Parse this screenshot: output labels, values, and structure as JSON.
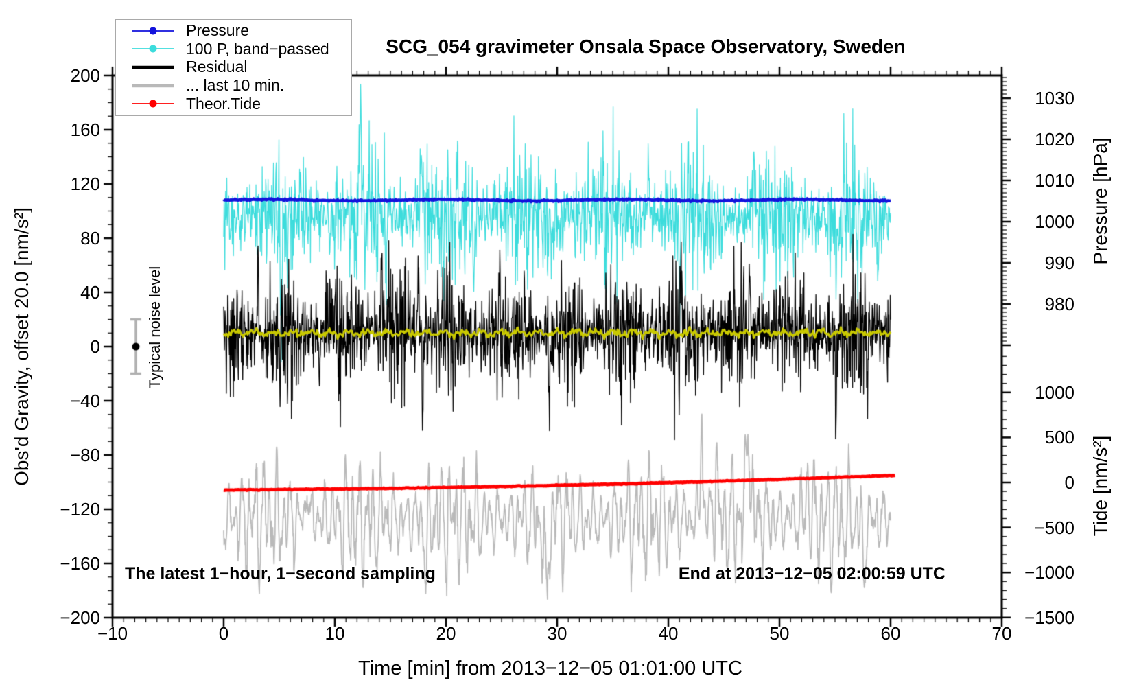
{
  "chart_data": {
    "type": "line",
    "title": "SCG_054 gravimeter Onsala Space Observatory, Sweden",
    "xlabel": "Time [min] from 2013−12−05 01:01:00 UTC",
    "ylabel_left": "Obs'd Gravity, offset 20.0 [nm/s²]",
    "ylabel_right_top": "Pressure [hPa]",
    "ylabel_right_bottom": "Tide [nm/s²]",
    "annotations": {
      "sampling": "The latest 1−hour, 1−second sampling",
      "end_time": "End at 2013−12−05 02:00:59 UTC"
    },
    "axes": {
      "x": {
        "min": -10,
        "max": 70,
        "major_tick": 10,
        "minor_tick": 1,
        "tick_values": [
          -10,
          0,
          10,
          20,
          30,
          40,
          50,
          60,
          70
        ],
        "tick_labels": [
          "−10",
          "0",
          "10",
          "20",
          "30",
          "40",
          "50",
          "60",
          "70"
        ]
      },
      "gravity": {
        "min": -200,
        "max": 200,
        "major_tick": 40,
        "minor_tick": 10,
        "tick_values": [
          200,
          160,
          120,
          80,
          40,
          0,
          -40,
          -80,
          -120,
          -160,
          -200
        ],
        "tick_labels": [
          "200",
          "160",
          "120",
          "80",
          "40",
          "0",
          "−40",
          "−80",
          "−120",
          "−160",
          "−200"
        ]
      },
      "pressure": {
        "major_tick": 10,
        "minor_tick": 1,
        "visible_range": [
          967,
          1036
        ],
        "tick_values": [
          1030,
          1020,
          1010,
          1000,
          990,
          980
        ],
        "tick_labels": [
          "1030",
          "1020",
          "1010",
          "1000",
          "990",
          "980"
        ]
      },
      "tide": {
        "major_tick": 500,
        "minor_tick": 100,
        "visible_range": [
          -1500,
          1500
        ],
        "tick_values": [
          1000,
          500,
          0,
          -500,
          -1000,
          -1500
        ],
        "tick_labels": [
          "1000",
          "500",
          "0",
          "−500",
          "−1000",
          "−1500"
        ]
      }
    },
    "noise_marker": {
      "label": "Typical noise level",
      "t": -7.9,
      "value": 0,
      "error": 20,
      "bar_color": "#b0b0b0",
      "dot_color": "#000000"
    },
    "legend": {
      "entries": [
        {
          "label": "Pressure",
          "color": "#1313dc",
          "thick": false,
          "marker": true
        },
        {
          "label": "100 P, band−passed",
          "color": "#3cdcdc",
          "thick": false,
          "marker": true
        },
        {
          "label": "Residual",
          "color": "#000000",
          "thick": true,
          "marker": false
        },
        {
          "label": "... last 10 min.",
          "color": "#b9b9b9",
          "thick": true,
          "marker": false
        },
        {
          "label": "Theor.Tide",
          "color": "#ff0000",
          "thick": false,
          "marker": true
        }
      ]
    },
    "series": [
      {
        "name": "100 P, band-passed",
        "color": "#3cdcdc",
        "width": 1.2,
        "seed": 41,
        "dt": 0.035,
        "t0": 0,
        "t1": 60,
        "center": 96,
        "jitter": 14,
        "env": {
          "v": 0.45,
          "p": 7.3
        },
        "fast": [
          {
            "a": 11,
            "p": 0.27
          },
          {
            "a": 9,
            "p": 0.47
          },
          {
            "a": 6,
            "p": 0.11
          }
        ],
        "spikes": [
          {
            "at": 12.3,
            "a": 62,
            "w": 0.18
          },
          {
            "at": 12.0,
            "a": -40,
            "w": 0.1
          },
          {
            "at": 17.8,
            "a": 40,
            "w": 0.12
          },
          {
            "at": 5.2,
            "a": -55,
            "w": 0.1
          },
          {
            "at": 14.6,
            "a": -48,
            "w": 0.09
          },
          {
            "at": 22.5,
            "a": -60,
            "w": 0.08
          },
          {
            "at": 29.5,
            "a": -40,
            "w": 0.1
          },
          {
            "at": 38.2,
            "a": 35,
            "w": 0.1
          },
          {
            "at": 47.6,
            "a": 38,
            "w": 0.12
          },
          {
            "at": 41.0,
            "a": -45,
            "w": 0.09
          },
          {
            "at": 55.3,
            "a": -38,
            "w": 0.1
          },
          {
            "at": 58.8,
            "a": -45,
            "w": 0.1
          }
        ]
      },
      {
        "name": "Pressure",
        "color": "#1313dc",
        "width": 4.5,
        "seed": 7,
        "dt": 0.06,
        "t0": 0,
        "t1": 60,
        "center": 108,
        "jitter": 0.25,
        "slow": {
          "a": 0.5,
          "p": 16
        },
        "reading_hPa": 1005
      },
      {
        "name": "Residual last 10 min",
        "color": "#b9b9b9",
        "width": 1.7,
        "seed": 99,
        "dt": 0.03,
        "t0": 0,
        "t1": 60,
        "center": -127,
        "jitter": 4,
        "env": {
          "v": 0.4,
          "p": 8.5
        },
        "fast": [
          {
            "a": 20,
            "p": 0.62
          },
          {
            "a": 13,
            "p": 1.05
          },
          {
            "a": 8,
            "p": 0.36
          }
        ],
        "spikes": [
          {
            "at": 29.0,
            "a": -72,
            "w": 0.18
          },
          {
            "at": 43.0,
            "a": 88,
            "w": 0.12
          },
          {
            "at": 47.2,
            "a": 80,
            "w": 0.2
          },
          {
            "at": 44.3,
            "a": 60,
            "w": 0.1
          },
          {
            "at": 57.6,
            "a": -52,
            "w": 0.15
          },
          {
            "at": 7.5,
            "a": 35,
            "w": 0.12
          },
          {
            "at": 18.2,
            "a": -35,
            "w": 0.15
          },
          {
            "at": 52.5,
            "a": 40,
            "w": 0.12
          }
        ],
        "tide_axis_note": "oscillates around −250 on tide axis"
      },
      {
        "name": "Theor.Tide",
        "color": "#ff0000",
        "width": 5,
        "seed": 3,
        "dt": 0.1,
        "t0": 0,
        "t1": 60.4,
        "center": -105.8,
        "jitter": 0.12,
        "trend": [
          0.05,
          0.00215
        ],
        "tide_axis_note": "rises from about −75 to +85 nm/s² on tide axis"
      },
      {
        "name": "Residual",
        "color": "#000000",
        "width": 1.3,
        "seed": 17,
        "dt": 0.03,
        "t0": 0,
        "t1": 60,
        "center": 10,
        "jitter": 13,
        "env": {
          "v": 0.4,
          "p": 5.1
        },
        "fast": [
          {
            "a": 10,
            "p": 0.21
          },
          {
            "a": 8,
            "p": 0.37
          },
          {
            "a": 7,
            "p": 0.09
          }
        ],
        "spikes": [
          {
            "at": 41.2,
            "a": 80,
            "w": 0.06
          },
          {
            "at": 3.1,
            "a": 58,
            "w": 0.06
          },
          {
            "at": 17.5,
            "a": 60,
            "w": 0.07
          },
          {
            "at": 17.9,
            "a": -70,
            "w": 0.06
          },
          {
            "at": 14.2,
            "a": 50,
            "w": 0.08
          },
          {
            "at": 29.3,
            "a": -60,
            "w": 0.07
          },
          {
            "at": 55.1,
            "a": -68,
            "w": 0.06
          },
          {
            "at": 57.9,
            "a": -60,
            "w": 0.05
          },
          {
            "at": 47.3,
            "a": 55,
            "w": 0.06
          },
          {
            "at": 24.8,
            "a": 52,
            "w": 0.07
          },
          {
            "at": 8.6,
            "a": -52,
            "w": 0.06
          },
          {
            "at": 35.6,
            "a": -48,
            "w": 0.07
          }
        ]
      },
      {
        "name": "Residual smoothed",
        "color": "#c9c900",
        "width": 3,
        "seed": 23,
        "dt": 0.08,
        "t0": 0,
        "t1": 60,
        "center": 10,
        "jitter": 0.8,
        "fast": [
          {
            "a": 1.4,
            "p": 1.7
          },
          {
            "a": 0.9,
            "p": 0.5
          }
        ]
      }
    ]
  }
}
